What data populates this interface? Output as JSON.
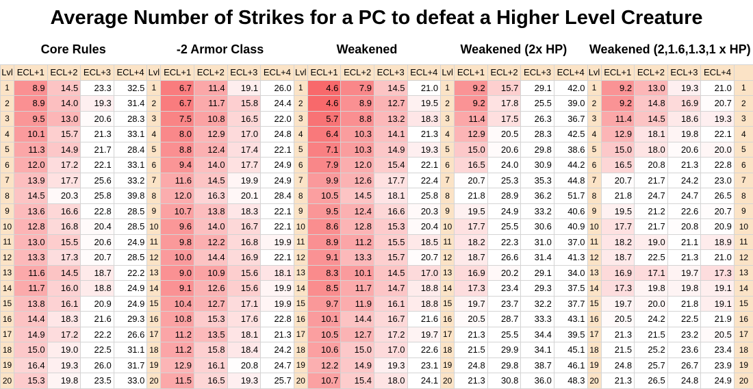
{
  "title": "Average Number of Strikes for a PC to defeat a Higher Level Creature",
  "sections": [
    {
      "title": "Core Rules",
      "values": [
        [
          8.9,
          14.5,
          23.3,
          32.5
        ],
        [
          8.9,
          14.0,
          19.3,
          31.4
        ],
        [
          9.5,
          13.0,
          20.6,
          28.3
        ],
        [
          10.1,
          15.7,
          21.3,
          33.1
        ],
        [
          11.3,
          14.9,
          21.7,
          28.4
        ],
        [
          12.0,
          17.2,
          22.1,
          33.1
        ],
        [
          13.9,
          17.7,
          25.6,
          33.2
        ],
        [
          14.5,
          20.3,
          25.8,
          39.8
        ],
        [
          13.6,
          16.6,
          22.8,
          28.5
        ],
        [
          12.8,
          16.8,
          20.4,
          28.5
        ],
        [
          13.0,
          15.5,
          20.6,
          24.9
        ],
        [
          13.3,
          17.3,
          20.7,
          28.5
        ],
        [
          11.6,
          14.5,
          18.7,
          22.2
        ],
        [
          11.7,
          16.0,
          18.8,
          24.9
        ],
        [
          13.8,
          16.1,
          20.9,
          24.9
        ],
        [
          14.4,
          18.3,
          21.6,
          29.3
        ],
        [
          14.9,
          17.2,
          22.2,
          26.6
        ],
        [
          15.0,
          19.0,
          22.5,
          31.1
        ],
        [
          16.4,
          19.3,
          26.0,
          31.7
        ],
        [
          15.3,
          19.8,
          23.5,
          33.0
        ]
      ]
    },
    {
      "title": "-2 Armor Class",
      "values": [
        [
          6.7,
          11.4,
          19.1,
          26.0
        ],
        [
          6.7,
          11.7,
          15.8,
          24.4
        ],
        [
          7.5,
          10.8,
          16.5,
          22.0
        ],
        [
          8.0,
          12.9,
          17.0,
          24.8
        ],
        [
          8.8,
          12.4,
          17.4,
          22.1
        ],
        [
          9.4,
          14.0,
          17.7,
          24.9
        ],
        [
          11.6,
          14.5,
          19.9,
          24.9
        ],
        [
          12.0,
          16.3,
          20.1,
          28.4
        ],
        [
          10.7,
          13.8,
          18.3,
          22.1
        ],
        [
          9.6,
          14.0,
          16.7,
          22.1
        ],
        [
          9.8,
          12.2,
          16.8,
          19.9
        ],
        [
          10.0,
          14.4,
          16.9,
          22.1
        ],
        [
          9.0,
          10.9,
          15.6,
          18.1
        ],
        [
          9.1,
          12.6,
          15.6,
          19.9
        ],
        [
          10.4,
          12.7,
          17.1,
          19.9
        ],
        [
          10.8,
          15.3,
          17.6,
          22.8
        ],
        [
          11.2,
          13.5,
          18.1,
          21.3
        ],
        [
          11.2,
          15.8,
          18.4,
          24.2
        ],
        [
          12.9,
          16.1,
          20.8,
          24.7
        ],
        [
          11.5,
          16.5,
          19.3,
          25.7
        ]
      ]
    },
    {
      "title": "Weakened",
      "values": [
        [
          4.6,
          7.9,
          14.5,
          21.0
        ],
        [
          4.6,
          8.9,
          12.7,
          19.5
        ],
        [
          5.7,
          8.8,
          13.2,
          18.3
        ],
        [
          6.4,
          10.3,
          14.1,
          21.3
        ],
        [
          7.1,
          10.3,
          14.9,
          19.3
        ],
        [
          7.9,
          12.0,
          15.4,
          22.1
        ],
        [
          9.9,
          12.6,
          17.7,
          22.4
        ],
        [
          10.5,
          14.5,
          18.1,
          25.8
        ],
        [
          9.5,
          12.4,
          16.6,
          20.3
        ],
        [
          8.6,
          12.8,
          15.3,
          20.4
        ],
        [
          8.9,
          11.2,
          15.5,
          18.5
        ],
        [
          9.1,
          13.3,
          15.7,
          20.7
        ],
        [
          8.3,
          10.1,
          14.5,
          17.0
        ],
        [
          8.5,
          11.7,
          14.7,
          18.8
        ],
        [
          9.7,
          11.9,
          16.1,
          18.8
        ],
        [
          10.1,
          14.4,
          16.7,
          21.6
        ],
        [
          10.5,
          12.7,
          17.2,
          19.7
        ],
        [
          10.6,
          15.0,
          17.0,
          22.6
        ],
        [
          12.2,
          14.9,
          19.3,
          23.1
        ],
        [
          10.7,
          15.4,
          18.0,
          24.1
        ]
      ]
    },
    {
      "title": "Weakened (2x HP)",
      "values": [
        [
          9.2,
          15.7,
          29.1,
          42.0
        ],
        [
          9.2,
          17.8,
          25.5,
          39.0
        ],
        [
          11.4,
          17.5,
          26.3,
          36.7
        ],
        [
          12.9,
          20.5,
          28.3,
          42.5
        ],
        [
          15.0,
          20.6,
          29.8,
          38.6
        ],
        [
          16.5,
          24.0,
          30.9,
          44.2
        ],
        [
          20.7,
          25.3,
          35.3,
          44.8
        ],
        [
          21.8,
          28.9,
          36.2,
          51.7
        ],
        [
          19.5,
          24.9,
          33.2,
          40.6
        ],
        [
          17.7,
          25.5,
          30.6,
          40.9
        ],
        [
          18.2,
          22.3,
          31.0,
          37.0
        ],
        [
          18.7,
          26.6,
          31.4,
          41.3
        ],
        [
          16.9,
          20.2,
          29.1,
          34.0
        ],
        [
          17.3,
          23.4,
          29.3,
          37.5
        ],
        [
          19.7,
          23.7,
          32.2,
          37.7
        ],
        [
          20.5,
          28.7,
          33.3,
          43.1
        ],
        [
          21.3,
          25.5,
          34.4,
          39.5
        ],
        [
          21.5,
          29.9,
          34.1,
          45.1
        ],
        [
          24.8,
          29.8,
          38.7,
          46.1
        ],
        [
          21.3,
          30.8,
          36.0,
          48.3
        ]
      ]
    },
    {
      "title": "Weakened (2,1.6,1.3,1 x HP)",
      "values": [
        [
          9.2,
          13.0,
          19.3,
          21.0
        ],
        [
          9.2,
          14.8,
          16.9,
          20.7
        ],
        [
          11.4,
          14.5,
          18.6,
          19.3
        ],
        [
          12.9,
          18.1,
          19.8,
          22.1
        ],
        [
          15.0,
          18.0,
          20.6,
          20.0
        ],
        [
          16.5,
          20.8,
          21.3,
          22.8
        ],
        [
          20.7,
          21.7,
          24.2,
          23.0
        ],
        [
          21.8,
          24.7,
          24.7,
          26.5
        ],
        [
          19.5,
          21.2,
          22.6,
          20.7
        ],
        [
          17.7,
          21.7,
          20.8,
          20.9
        ],
        [
          18.2,
          19.0,
          21.1,
          18.9
        ],
        [
          18.7,
          22.5,
          21.3,
          21.0
        ],
        [
          16.9,
          17.1,
          19.7,
          17.3
        ],
        [
          17.3,
          19.8,
          19.8,
          19.1
        ],
        [
          19.7,
          20.0,
          21.8,
          19.1
        ],
        [
          20.5,
          24.2,
          22.5,
          21.9
        ],
        [
          21.3,
          21.5,
          23.2,
          20.5
        ],
        [
          21.5,
          25.2,
          23.6,
          23.4
        ],
        [
          24.8,
          25.7,
          26.7,
          23.9
        ],
        [
          21.3,
          26.5,
          24.8,
          24.9
        ]
      ]
    }
  ],
  "header": {
    "lvl": "Lvl",
    "cols": [
      "ECL+1",
      "ECL+2",
      "ECL+3",
      "ECL+4"
    ]
  },
  "levels": [
    "1",
    "2",
    "3",
    "4",
    "5",
    "6",
    "7",
    "8",
    "9",
    "10",
    "11",
    "12",
    "13",
    "14",
    "15",
    "16",
    "17",
    "18",
    "19",
    "20"
  ],
  "color_scale": {
    "min_color": "#f8696b",
    "max_color": "#ffffff",
    "min": 4.6,
    "max": 21.0
  }
}
